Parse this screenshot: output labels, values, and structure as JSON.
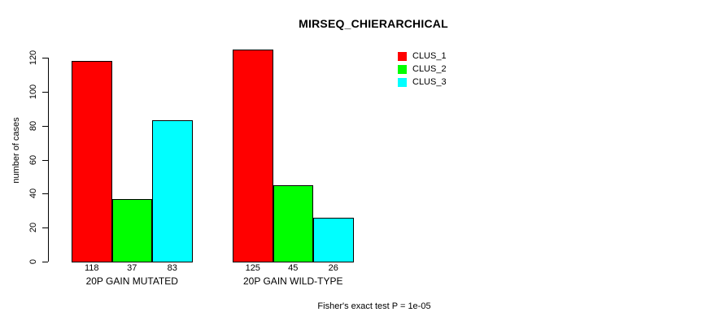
{
  "chart_data": {
    "type": "bar",
    "title": "MIRSEQ_CHIERARCHICAL",
    "xlabel": "",
    "ylabel": "number of cases",
    "ylim": [
      0,
      120
    ],
    "yticks": [
      0,
      20,
      40,
      60,
      80,
      100,
      120
    ],
    "grid": false,
    "legend_position": "top-right",
    "categories": [
      "20P GAIN MUTATED",
      "20P GAIN WILD-TYPE"
    ],
    "series": [
      {
        "name": "CLUS_1",
        "color": "#ff0000",
        "values": [
          118,
          125
        ]
      },
      {
        "name": "CLUS_2",
        "color": "#00ff00",
        "values": [
          37,
          45
        ]
      },
      {
        "name": "CLUS_3",
        "color": "#00ffff",
        "values": [
          83,
          26
        ]
      }
    ],
    "bar_value_labels": [
      [
        118,
        37,
        83
      ],
      [
        125,
        45,
        26
      ]
    ],
    "annotation": "Fisher's exact test P = 1e-05"
  },
  "colors": {
    "background": "#ffffff",
    "axis": "#000000",
    "text": "#000000"
  }
}
